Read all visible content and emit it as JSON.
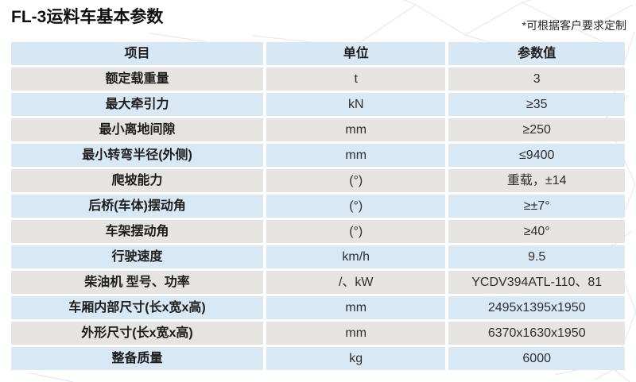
{
  "page": {
    "title": "FL-3运料车基本参数",
    "note": "*可根据客户要求定制"
  },
  "table": {
    "columns": [
      "项目",
      "单位",
      "参数值"
    ],
    "rows": [
      {
        "item": "额定载重量",
        "unit": "t",
        "value": "3"
      },
      {
        "item": "最大牵引力",
        "unit": "kN",
        "value": "≥35"
      },
      {
        "item": "最小离地间隙",
        "unit": "mm",
        "value": "≥250"
      },
      {
        "item": "最小转弯半径(外侧)",
        "unit": "mm",
        "value": "≤9400"
      },
      {
        "item": "爬坡能力",
        "unit": "(°)",
        "value": "重载，±14"
      },
      {
        "item": "后桥(车体)摆动角",
        "unit": "(°)",
        "value": "≥±7°"
      },
      {
        "item": "车架摆动角",
        "unit": "(°)",
        "value": "≥40°"
      },
      {
        "item": "行驶速度",
        "unit": "km/h",
        "value": "9.5"
      },
      {
        "item": "柴油机 型号、功率",
        "unit": "/、kW",
        "value": "YCDV394ATL-110、81"
      },
      {
        "item": "车厢内部尺寸(长x宽x高)",
        "unit": "mm",
        "value": "2495x1395x1950"
      },
      {
        "item": "外形尺寸(长x宽x高)",
        "unit": "mm",
        "value": "6370x1630x1950"
      },
      {
        "item": "整备质量",
        "unit": "kg",
        "value": "6000"
      }
    ]
  },
  "colors": {
    "header_bg": "#d7e7f4",
    "row_blue": "#d9e8f5",
    "row_gray": "#e5e4e1",
    "pattern_line": "#e9e9e9"
  }
}
